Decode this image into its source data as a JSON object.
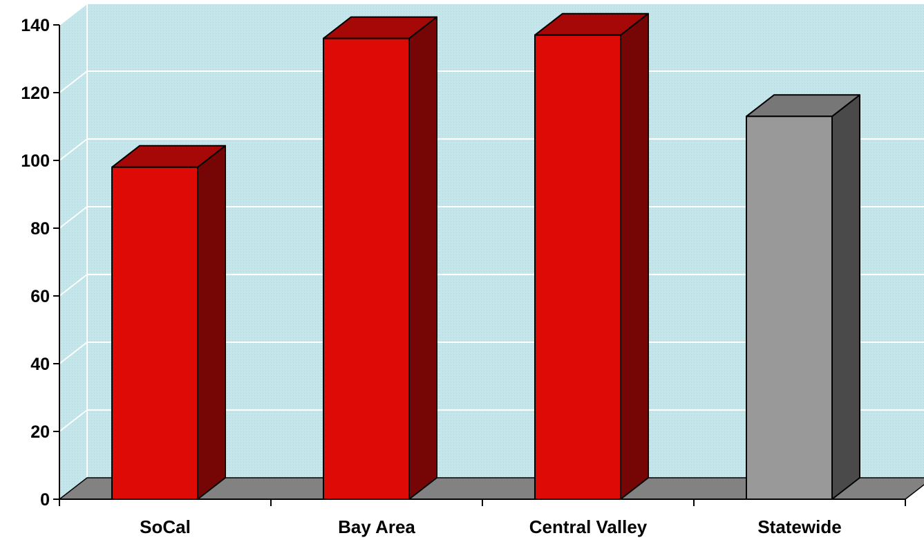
{
  "chart_data": {
    "type": "bar",
    "title": "",
    "xlabel": "",
    "ylabel": "",
    "categories": [
      "SoCal",
      "Bay Area",
      "Central Valley",
      "Statewide"
    ],
    "values": [
      98,
      136,
      137,
      113
    ],
    "ylim": [
      0,
      140
    ],
    "yticks": [
      "0",
      "20",
      "40",
      "60",
      "80",
      "100",
      "120",
      "140"
    ],
    "grid": true,
    "legend": "none",
    "three_d": true,
    "colors": {
      "bars": [
        "#dd0a06",
        "#dd0a06",
        "#dd0a06",
        "#999999"
      ],
      "bar_tops": [
        "#a60808",
        "#a60808",
        "#a60808",
        "#777777"
      ],
      "bar_sides": [
        "#760505",
        "#760505",
        "#760505",
        "#4a4a4a"
      ],
      "wall": "#c4e5e9",
      "floor": "#828282",
      "gridline": "#ffffff"
    }
  }
}
